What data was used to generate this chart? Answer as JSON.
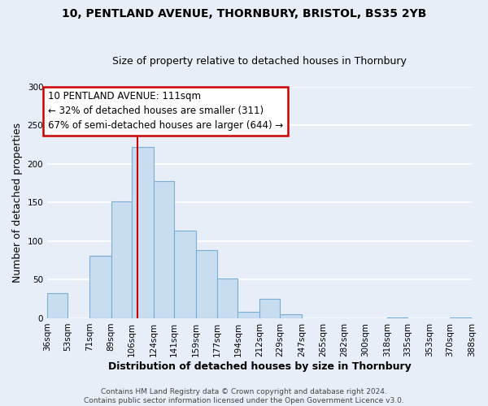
{
  "title": "10, PENTLAND AVENUE, THORNBURY, BRISTOL, BS35 2YB",
  "subtitle": "Size of property relative to detached houses in Thornbury",
  "xlabel": "Distribution of detached houses by size in Thornbury",
  "ylabel": "Number of detached properties",
  "bar_color": "#c8ddf0",
  "bar_edge_color": "#7aafd4",
  "bins": [
    36,
    53,
    71,
    89,
    106,
    124,
    141,
    159,
    177,
    194,
    212,
    229,
    247,
    265,
    282,
    300,
    318,
    335,
    353,
    370,
    388
  ],
  "counts": [
    33,
    0,
    81,
    151,
    222,
    178,
    114,
    88,
    51,
    8,
    25,
    5,
    0,
    0,
    0,
    0,
    1,
    0,
    0,
    1
  ],
  "vline_x": 111,
  "vline_color": "#cc0000",
  "annotation_title": "10 PENTLAND AVENUE: 111sqm",
  "annotation_line1": "← 32% of detached houses are smaller (311)",
  "annotation_line2": "67% of semi-detached houses are larger (644) →",
  "annotation_box_color": "#ffffff",
  "annotation_box_edge_color": "#cc0000",
  "ylim": [
    0,
    300
  ],
  "yticks": [
    0,
    50,
    100,
    150,
    200,
    250,
    300
  ],
  "tick_labels": [
    "36sqm",
    "53sqm",
    "71sqm",
    "89sqm",
    "106sqm",
    "124sqm",
    "141sqm",
    "159sqm",
    "177sqm",
    "194sqm",
    "212sqm",
    "229sqm",
    "247sqm",
    "265sqm",
    "282sqm",
    "300sqm",
    "318sqm",
    "335sqm",
    "353sqm",
    "370sqm",
    "388sqm"
  ],
  "footer_line1": "Contains HM Land Registry data © Crown copyright and database right 2024.",
  "footer_line2": "Contains public sector information licensed under the Open Government Licence v3.0.",
  "background_color": "#e8eef8",
  "grid_color": "#ffffff",
  "title_fontsize": 10,
  "subtitle_fontsize": 9,
  "xlabel_fontsize": 9,
  "ylabel_fontsize": 9,
  "tick_fontsize": 7.5,
  "footer_fontsize": 6.5,
  "annotation_fontsize": 8.5
}
